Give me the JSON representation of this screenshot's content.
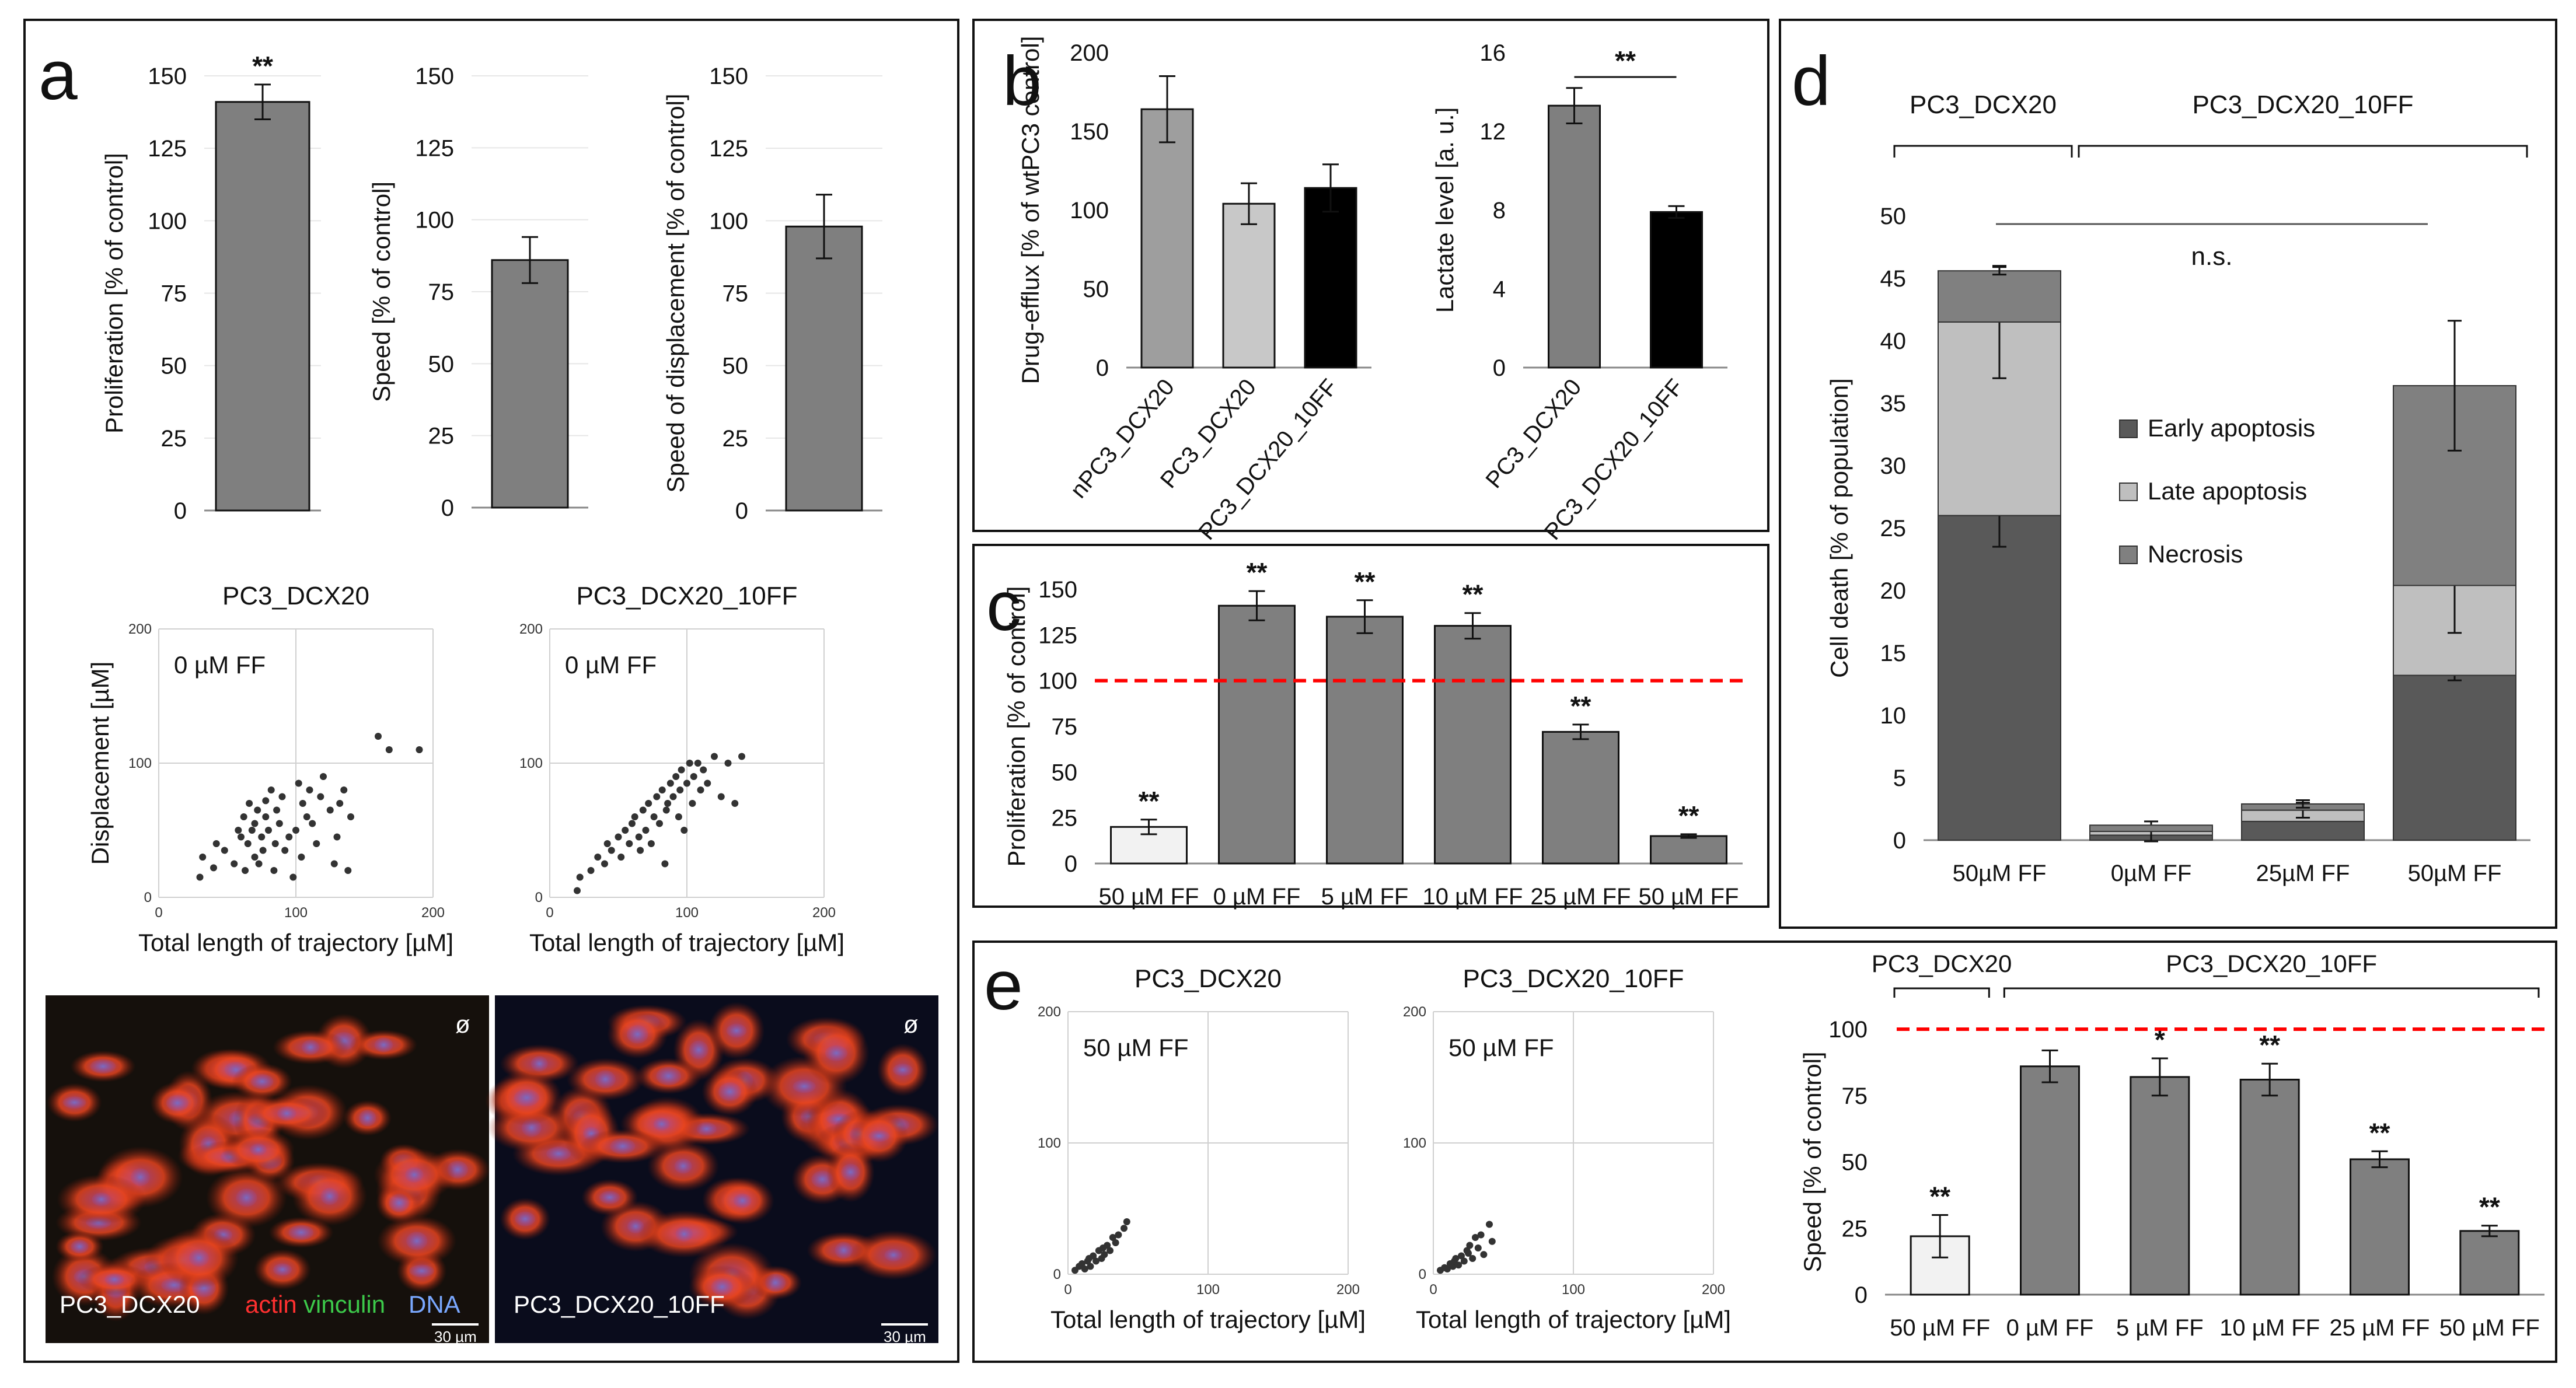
{
  "figure": {
    "panels": [
      "a",
      "b",
      "c",
      "d",
      "e"
    ],
    "micrographs": [
      {
        "label": "PC3_DCX20",
        "stain_actin": "actin",
        "stain_vinculin": "vinculin",
        "stain_dna": "DNA",
        "scale": "30 µm",
        "corner": "ø"
      },
      {
        "label": "PC3_DCX20_10FF",
        "scale": "30 µm",
        "corner": "ø"
      }
    ],
    "colors": {
      "bar_dark": "#7f7f7f",
      "bar_gray": "#9e9e9e",
      "bar_light": "#c8c8c8",
      "bar_white": "#f2f2f2",
      "bar_black": "#000000",
      "red_line": "#ff0000",
      "early": "#595959",
      "late": "#bfbfbf",
      "necrosis": "#808080"
    }
  },
  "chart_data": [
    {
      "id": "a1",
      "type": "bar",
      "categories": [
        ""
      ],
      "values": [
        141
      ],
      "errors": [
        6
      ],
      "ylabel": "Proliferation [% of control]",
      "ylim": [
        0,
        150
      ],
      "yticks": [
        0,
        25,
        50,
        75,
        100,
        125,
        150
      ],
      "sig": [
        "**"
      ]
    },
    {
      "id": "a2",
      "type": "bar",
      "categories": [
        ""
      ],
      "values": [
        86
      ],
      "errors": [
        8
      ],
      "ylabel": "Speed [% of control]",
      "ylim": [
        0,
        150
      ],
      "yticks": [
        0,
        25,
        50,
        75,
        100,
        125,
        150
      ],
      "sig": [
        ""
      ]
    },
    {
      "id": "a3",
      "type": "bar",
      "categories": [
        ""
      ],
      "values": [
        98
      ],
      "errors": [
        11
      ],
      "ylabel": "Speed of displacement [% of control]",
      "ylim": [
        0,
        150
      ],
      "yticks": [
        0,
        25,
        50,
        75,
        100,
        125,
        150
      ],
      "sig": [
        ""
      ]
    },
    {
      "id": "a4",
      "type": "scatter",
      "title": "PC3_DCX20",
      "annotation": "0 µM FF",
      "xlabel": "Total length of trajectory [µM]",
      "ylabel": "Displacement [µM]",
      "xlim": [
        0,
        200
      ],
      "ylim": [
        0,
        200
      ],
      "xticks": [
        0,
        100,
        200
      ],
      "yticks": [
        0,
        100,
        200
      ],
      "x": [
        30,
        32,
        40,
        42,
        48,
        55,
        58,
        60,
        62,
        63,
        65,
        66,
        68,
        70,
        70,
        72,
        73,
        75,
        76,
        78,
        78,
        80,
        82,
        84,
        85,
        86,
        88,
        90,
        92,
        95,
        98,
        100,
        102,
        104,
        105,
        108,
        110,
        112,
        115,
        118,
        120,
        125,
        128,
        130,
        132,
        135,
        138,
        140,
        160,
        168,
        190
      ],
      "y": [
        15,
        30,
        22,
        40,
        35,
        25,
        50,
        45,
        60,
        20,
        40,
        70,
        50,
        30,
        55,
        65,
        25,
        45,
        35,
        60,
        72,
        50,
        80,
        20,
        40,
        65,
        55,
        75,
        35,
        45,
        15,
        50,
        85,
        30,
        70,
        60,
        80,
        55,
        40,
        75,
        90,
        65,
        25,
        45,
        70,
        80,
        20,
        60,
        120,
        110,
        110
      ]
    },
    {
      "id": "a5",
      "type": "scatter",
      "title": "PC3_DCX20_10FF",
      "annotation": "0 µM FF",
      "xlabel": "Total length of trajectory [µM]",
      "ylabel": "",
      "xlim": [
        0,
        200
      ],
      "ylim": [
        0,
        200
      ],
      "xticks": [
        0,
        100,
        200
      ],
      "yticks": [
        0,
        100,
        200
      ],
      "x": [
        20,
        22,
        30,
        35,
        40,
        42,
        45,
        50,
        52,
        55,
        58,
        60,
        62,
        65,
        66,
        68,
        70,
        72,
        74,
        76,
        78,
        80,
        82,
        84,
        85,
        86,
        88,
        90,
        92,
        94,
        95,
        96,
        98,
        100,
        102,
        104,
        105,
        108,
        110,
        112,
        115,
        120,
        125,
        130,
        135,
        140
      ],
      "y": [
        5,
        15,
        20,
        30,
        25,
        40,
        35,
        45,
        30,
        50,
        40,
        55,
        60,
        45,
        35,
        65,
        50,
        70,
        40,
        60,
        75,
        55,
        80,
        25,
        65,
        70,
        85,
        75,
        90,
        60,
        80,
        95,
        50,
        85,
        100,
        70,
        90,
        100,
        80,
        95,
        85,
        105,
        75,
        100,
        70,
        105
      ]
    },
    {
      "id": "b1",
      "type": "bar",
      "categories": [
        "nPC3_DCX20",
        "PC3_DCX20",
        "PC3_DCX20_10FF"
      ],
      "values": [
        164,
        104,
        114
      ],
      "errors": [
        21,
        13,
        15
      ],
      "ylabel": "Drug-efflux [% of wtPC3 control]",
      "ylim": [
        0,
        200
      ],
      "yticks": [
        0,
        50,
        100,
        150,
        200
      ]
    },
    {
      "id": "b2",
      "type": "bar",
      "categories": [
        "PC3_DCX20",
        "PC3_DCX20_10FF"
      ],
      "values": [
        13.3,
        7.9
      ],
      "errors": [
        0.9,
        0.3
      ],
      "ylabel": "Lactate level [a. u.]",
      "ylim": [
        0,
        16
      ],
      "yticks": [
        0,
        4,
        8,
        12,
        16
      ],
      "sig_bracket": "**"
    },
    {
      "id": "c",
      "type": "bar",
      "categories": [
        "50 µM FF",
        "0 µM FF",
        "5 µM FF",
        "10 µM FF",
        "25 µM FF",
        "50 µM FF"
      ],
      "values": [
        20,
        141,
        135,
        130,
        72,
        15
      ],
      "errors": [
        4,
        8,
        9,
        7,
        4,
        1
      ],
      "sig": [
        "**",
        "**",
        "**",
        "**",
        "**",
        "**"
      ],
      "ylabel": "Proliferation [% of control]",
      "ylim": [
        0,
        150
      ],
      "yticks": [
        0,
        25,
        50,
        75,
        100,
        125,
        150
      ],
      "reference_line": 100
    },
    {
      "id": "d",
      "type": "bar",
      "stacked": true,
      "categories": [
        "50µM FF",
        "0µM FF",
        "25µM FF",
        "50µM FF"
      ],
      "ylabel": "Cell death [% of population]",
      "ylim": [
        0,
        50
      ],
      "yticks": [
        0,
        5,
        10,
        15,
        20,
        25,
        30,
        35,
        40,
        45,
        50
      ],
      "groups": [
        {
          "name": "PC3_DCX20",
          "span": [
            0,
            0
          ]
        },
        {
          "name": "PC3_DCX20_10FF",
          "span": [
            1,
            3
          ]
        }
      ],
      "significance": "n.s.",
      "series": [
        {
          "name": "Early apoptosis",
          "values": [
            26,
            0.4,
            1.5,
            13.2
          ],
          "errors": [
            2.5,
            0,
            0,
            0.4
          ]
        },
        {
          "name": "Late apoptosis",
          "values": [
            15.5,
            0.3,
            0.9,
            7.2
          ],
          "errors": [
            4.5,
            0.8,
            0.6,
            3.8
          ]
        },
        {
          "name": "Necrosis",
          "values": [
            4.1,
            0.5,
            0.5,
            16
          ],
          "errors": [
            0.3,
            0,
            0.3,
            5.2
          ]
        }
      ]
    },
    {
      "id": "e1",
      "type": "scatter",
      "title": "PC3_DCX20",
      "annotation": "50 µM FF",
      "xlabel": "Total length of trajectory [µM]",
      "ylabel": "",
      "xlim": [
        0,
        200
      ],
      "ylim": [
        0,
        200
      ],
      "xticks": [
        0,
        100,
        200
      ],
      "yticks": [
        0,
        100,
        200
      ],
      "x": [
        5,
        8,
        10,
        12,
        14,
        15,
        16,
        18,
        20,
        22,
        24,
        25,
        26,
        28,
        30,
        32,
        34,
        36,
        40,
        42
      ],
      "y": [
        3,
        6,
        8,
        4,
        10,
        12,
        6,
        14,
        10,
        18,
        12,
        20,
        15,
        22,
        18,
        28,
        24,
        30,
        35,
        40
      ]
    },
    {
      "id": "e2",
      "type": "scatter",
      "title": "PC3_DCX20_10FF",
      "annotation": "50 µM FF",
      "xlabel": "Total length of trajectory [µM]",
      "ylabel": "",
      "xlim": [
        0,
        200
      ],
      "ylim": [
        0,
        200
      ],
      "xticks": [
        0,
        100,
        200
      ],
      "yticks": [
        0,
        100,
        200
      ],
      "x": [
        5,
        8,
        10,
        12,
        14,
        15,
        16,
        18,
        20,
        22,
        24,
        25,
        26,
        28,
        30,
        32,
        34,
        36,
        40,
        42
      ],
      "y": [
        3,
        5,
        4,
        8,
        6,
        10,
        12,
        7,
        14,
        10,
        18,
        16,
        22,
        12,
        28,
        20,
        30,
        15,
        38,
        25
      ]
    },
    {
      "id": "e3",
      "type": "bar",
      "categories": [
        "50 µM FF",
        "0 µM FF",
        "5 µM FF",
        "10 µM FF",
        "25 µM FF",
        "50 µM FF"
      ],
      "values": [
        22,
        86,
        82,
        81,
        51,
        24
      ],
      "errors": [
        8,
        6,
        7,
        6,
        3,
        2
      ],
      "sig": [
        "**",
        "",
        "*",
        "**",
        "**",
        "**"
      ],
      "ylabel": "Speed [% of control]",
      "ylim": [
        0,
        100
      ],
      "yticks": [
        0,
        25,
        50,
        75,
        100
      ],
      "reference_line": 100,
      "groups": [
        {
          "name": "PC3_DCX20",
          "span": [
            0,
            0
          ]
        },
        {
          "name": "PC3_DCX20_10FF",
          "span": [
            1,
            5
          ]
        }
      ]
    }
  ]
}
